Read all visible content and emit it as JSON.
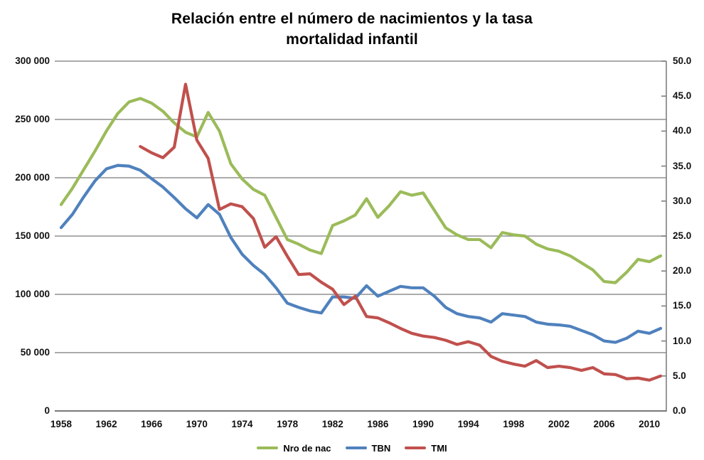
{
  "title": {
    "line1": "Relación entre el número de nacimientos y la tasa",
    "line2": "mortalidad infantil"
  },
  "colors": {
    "births_line": "#9BBB59",
    "tbn_line": "#4F81BD",
    "tmi_line": "#C0504D",
    "gridline": "#8F8F8F",
    "axis": "#7F7F7F",
    "text": "#111111",
    "background": "#FFFFFF"
  },
  "legend": {
    "items": [
      {
        "label": "Nro de nac",
        "color": "#9BBB59"
      },
      {
        "label": "TBN",
        "color": "#4F81BD"
      },
      {
        "label": "TMI",
        "color": "#C0504D"
      }
    ]
  },
  "chart_data": {
    "type": "line",
    "title": "Relación entre el número de nacimientos y la tasa mortalidad infantil",
    "grid": true,
    "legend_position": "bottom",
    "x": [
      1958,
      1959,
      1960,
      1961,
      1962,
      1963,
      1964,
      1965,
      1966,
      1967,
      1968,
      1969,
      1970,
      1971,
      1972,
      1973,
      1974,
      1975,
      1976,
      1977,
      1978,
      1979,
      1980,
      1981,
      1982,
      1983,
      1984,
      1985,
      1986,
      1987,
      1988,
      1989,
      1990,
      1991,
      1992,
      1993,
      1994,
      1995,
      1996,
      1997,
      1998,
      1999,
      2000,
      2001,
      2002,
      2003,
      2004,
      2005,
      2006,
      2007,
      2008,
      2009,
      2010,
      2011
    ],
    "x_tick_labels": [
      "1958",
      "1962",
      "1966",
      "1970",
      "1974",
      "1978",
      "1982",
      "1986",
      "1990",
      "1994",
      "1998",
      "2002",
      "2006",
      "2010"
    ],
    "y_axis_left": {
      "range": [
        0,
        300000
      ],
      "tick_step": 50000,
      "tick_labels": [
        "300 000",
        "250 000",
        "200 000",
        "150 000",
        "100 000",
        "50 000",
        "0"
      ]
    },
    "y_axis_right": {
      "range": [
        0.0,
        50.0
      ],
      "tick_step": 5.0,
      "tick_labels": [
        "50.0",
        "45.0",
        "40.0",
        "35.0",
        "30.0",
        "25.0",
        "20.0",
        "15.0",
        "10.0",
        "5.0",
        "0.0"
      ]
    },
    "series": [
      {
        "name": "Nro de nac",
        "axis": "left",
        "color": "#9BBB59",
        "values": [
          177000,
          191000,
          207000,
          223000,
          240000,
          255000,
          265000,
          268000,
          264000,
          257000,
          247000,
          239000,
          235000,
          256000,
          240000,
          212000,
          199000,
          190000,
          185000,
          166000,
          147000,
          143000,
          138000,
          135000,
          159000,
          163000,
          168000,
          182000,
          166000,
          176000,
          188000,
          185000,
          187000,
          172000,
          157000,
          151000,
          147000,
          147000,
          140000,
          153000,
          151000,
          150000,
          143000,
          139000,
          137000,
          133000,
          127000,
          121000,
          111000,
          110000,
          119000,
          130000,
          128000,
          133000
        ]
      },
      {
        "name": "TBN",
        "axis": "right",
        "color": "#4F81BD",
        "values": [
          26.2,
          28.1,
          30.6,
          32.9,
          34.6,
          35.1,
          35.0,
          34.4,
          33.2,
          32.0,
          30.5,
          28.9,
          27.6,
          29.5,
          28.1,
          24.8,
          22.4,
          20.8,
          19.5,
          17.6,
          15.4,
          14.8,
          14.3,
          14.0,
          16.3,
          16.3,
          16.1,
          17.9,
          16.4,
          17.1,
          17.8,
          17.6,
          17.6,
          16.4,
          14.8,
          13.9,
          13.5,
          13.3,
          12.7,
          13.9,
          13.7,
          13.5,
          12.7,
          12.4,
          12.3,
          12.1,
          11.5,
          10.9,
          10.0,
          9.8,
          10.4,
          11.4,
          11.1,
          11.8
        ]
      },
      {
        "name": "TMI",
        "axis": "right",
        "color": "#C0504D",
        "values": [
          null,
          null,
          null,
          null,
          null,
          null,
          null,
          37.8,
          36.9,
          36.2,
          37.7,
          46.7,
          38.7,
          36.1,
          28.8,
          29.6,
          29.2,
          27.5,
          23.4,
          24.9,
          22.1,
          19.5,
          19.6,
          18.4,
          17.4,
          15.2,
          16.4,
          13.5,
          13.3,
          12.6,
          11.8,
          11.1,
          10.7,
          10.5,
          10.1,
          9.5,
          9.9,
          9.4,
          7.8,
          7.1,
          6.7,
          6.4,
          7.2,
          6.2,
          6.4,
          6.2,
          5.8,
          6.2,
          5.3,
          5.2,
          4.6,
          4.7,
          4.4,
          5.0
        ]
      }
    ]
  }
}
